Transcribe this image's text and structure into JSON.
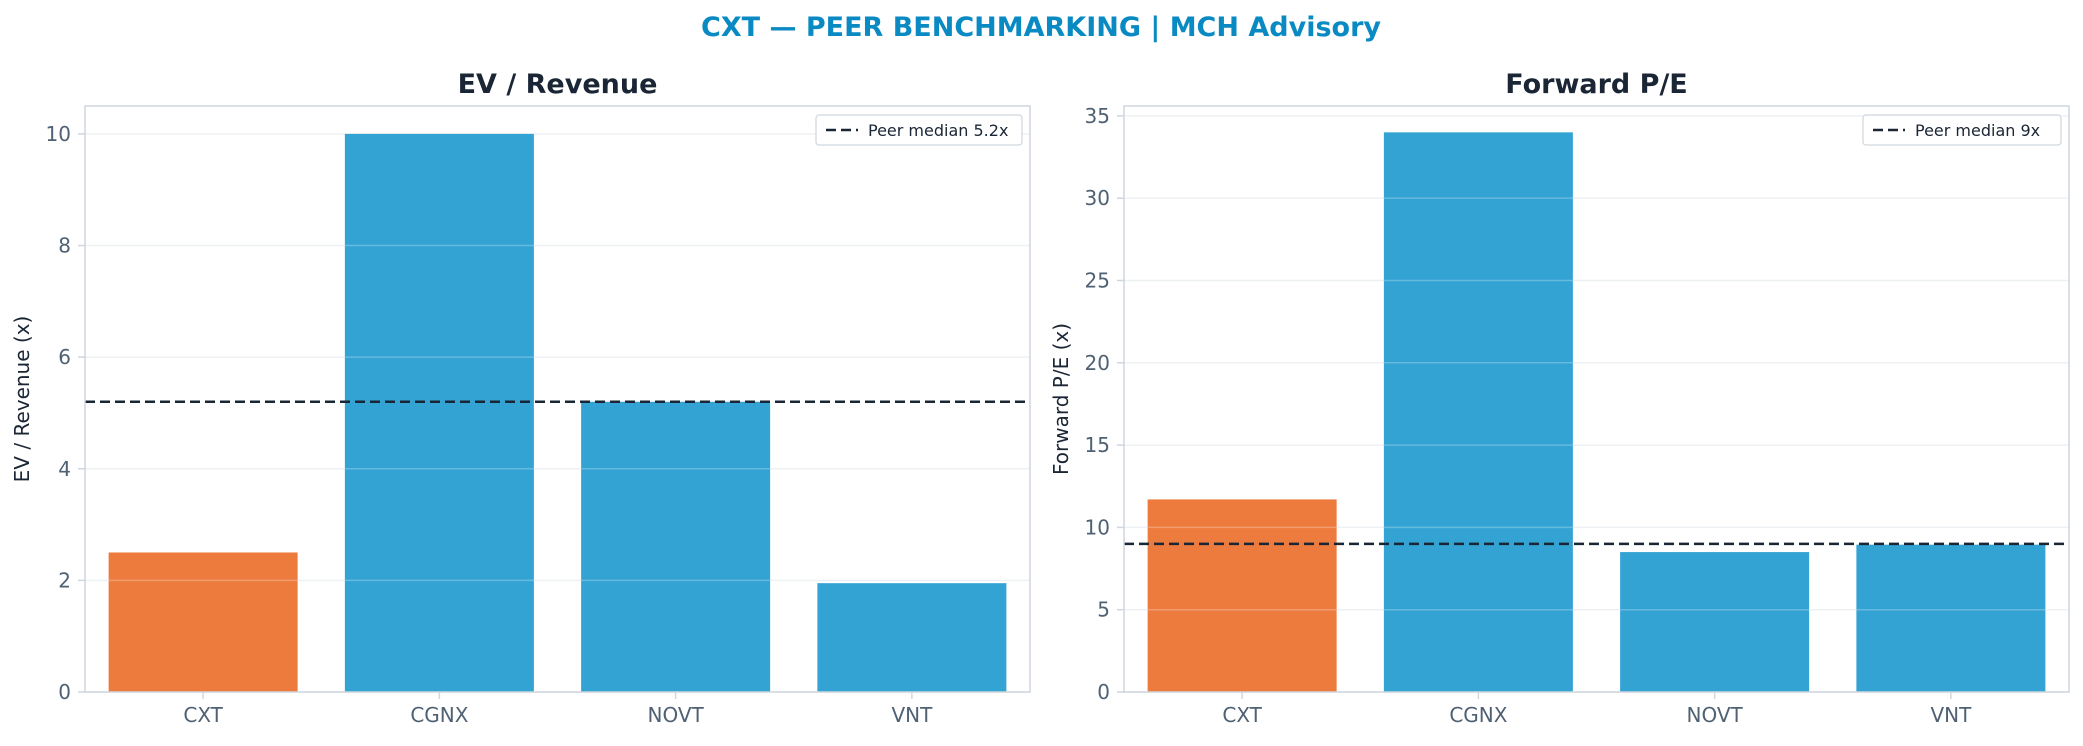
{
  "suptitle": "CXT — PEER BENCHMARKING | MCH Advisory",
  "colors": {
    "title": "#0a8ac2",
    "text_dark": "#1a2535",
    "tick_text": "#4f6173",
    "grid": "#eef1f4",
    "frame": "#cfd6dd",
    "highlight": "#ed7b3e",
    "peer": "#33a3d3",
    "median_line": "#1a2535"
  },
  "chart_data": [
    {
      "type": "bar",
      "title": "EV / Revenue",
      "categories": [
        "CXT",
        "CGNX",
        "NOVT",
        "VNT"
      ],
      "values": [
        2.5,
        10.0,
        5.2,
        1.95
      ],
      "highlight": [
        "CXT"
      ],
      "xlabel": "",
      "ylabel": "EV / Revenue (x)",
      "ylim": [
        0,
        10.5
      ],
      "yticks": [
        0,
        2,
        4,
        6,
        8,
        10
      ],
      "grid": true,
      "reference_line": {
        "label": "Peer median 5.2x",
        "value": 5.2,
        "style": "dashed"
      },
      "legend": "top-right"
    },
    {
      "type": "bar",
      "title": "Forward P/E",
      "categories": [
        "CXT",
        "CGNX",
        "NOVT",
        "VNT"
      ],
      "values": [
        11.7,
        34.0,
        8.5,
        8.95
      ],
      "highlight": [
        "CXT"
      ],
      "xlabel": "",
      "ylabel": "Forward P/E (x)",
      "ylim": [
        0,
        35.6
      ],
      "yticks": [
        0,
        5,
        10,
        15,
        20,
        25,
        30,
        35
      ],
      "grid": true,
      "reference_line": {
        "label": "Peer median 9x",
        "value": 9,
        "style": "dashed"
      },
      "legend": "top-right"
    }
  ]
}
